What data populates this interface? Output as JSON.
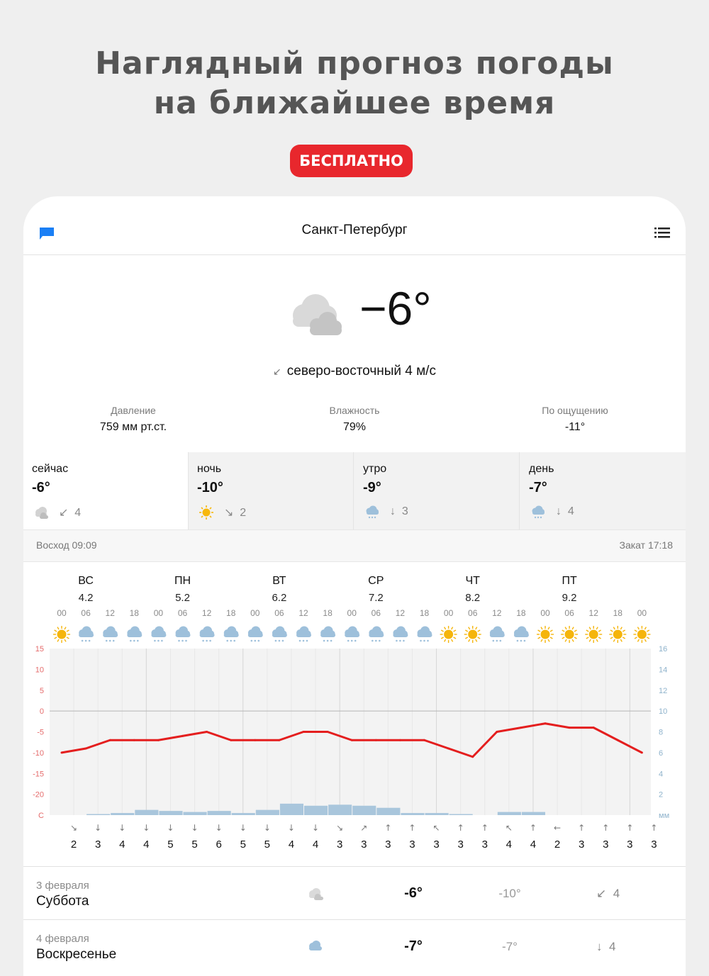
{
  "promo": {
    "headline_line1": "Наглядный прогноз погоды",
    "headline_line2": "на ближайшее время",
    "badge": "БЕСПЛАТНО",
    "badge_color": "#e8272d"
  },
  "nav": {
    "title": "Санкт-Петербург",
    "left_icon": "flag-icon",
    "right_icon": "menu-list-icon"
  },
  "current": {
    "icon": "cloudy-icon",
    "temp": "−6°",
    "wind_arrow": "↙",
    "wind": "северо-восточный 4 м/с",
    "stats": [
      {
        "label": "Давление",
        "value": "759 мм рт.ст."
      },
      {
        "label": "Влажность",
        "value": "79%"
      },
      {
        "label": "По ощущению",
        "value": "-11°"
      }
    ]
  },
  "periods": [
    {
      "name": "сейчас",
      "temp": "-6°",
      "icon": "cloudy-icon",
      "wind_arrow": "↙",
      "wind": "4"
    },
    {
      "name": "ночь",
      "temp": "-10°",
      "icon": "sun-icon",
      "wind_arrow": "↘",
      "wind": "2"
    },
    {
      "name": "утро",
      "temp": "-9°",
      "icon": "snow-icon",
      "wind_arrow": "↓",
      "wind": "3"
    },
    {
      "name": "день",
      "temp": "-7°",
      "icon": "snow-icon",
      "wind_arrow": "↓",
      "wind": "4"
    }
  ],
  "sun": {
    "sunrise": "Восход 09:09",
    "sunset": "Закат 17:18"
  },
  "chart_data": {
    "type": "line",
    "days": [
      {
        "name": "ВС",
        "date": "4.2"
      },
      {
        "name": "ПН",
        "date": "5.2"
      },
      {
        "name": "ВТ",
        "date": "6.2"
      },
      {
        "name": "СР",
        "date": "7.2"
      },
      {
        "name": "ЧТ",
        "date": "8.2"
      },
      {
        "name": "ПТ",
        "date": "9.2"
      }
    ],
    "hours": [
      "00",
      "06",
      "12",
      "18",
      "00",
      "06",
      "12",
      "18",
      "00",
      "06",
      "12",
      "18",
      "00",
      "06",
      "12",
      "18",
      "00",
      "06",
      "12",
      "18",
      "00",
      "06",
      "12",
      "18",
      "00"
    ],
    "icons": [
      "sun",
      "snow",
      "snow",
      "snow",
      "snow",
      "snow",
      "snow",
      "snow",
      "snow",
      "snow",
      "snow",
      "snow",
      "snow",
      "snow",
      "snow",
      "snow",
      "sun",
      "sun",
      "snow",
      "snow",
      "sun",
      "sun",
      "sun",
      "sun",
      "sun"
    ],
    "temp_axis": {
      "ticks": [
        "15",
        "10",
        "5",
        "0",
        "-5",
        "-10",
        "-15",
        "-20",
        "C"
      ],
      "ylim": [
        -25,
        15
      ],
      "color": "#e56b6b"
    },
    "precip_axis": {
      "ticks": [
        "16",
        "14",
        "12",
        "10",
        "8",
        "6",
        "4",
        "2",
        "мм"
      ],
      "ylim": [
        0,
        16
      ],
      "color": "#8fb3cc"
    },
    "temperature": {
      "color": "#e41e1e",
      "points": [
        [
          0,
          -10
        ],
        [
          1,
          -9
        ],
        [
          2,
          -7
        ],
        [
          3,
          -7
        ],
        [
          4,
          -7
        ],
        [
          5,
          -6
        ],
        [
          6,
          -5
        ],
        [
          7,
          -7
        ],
        [
          8,
          -7
        ],
        [
          9,
          -7
        ],
        [
          10,
          -5
        ],
        [
          11,
          -5
        ],
        [
          12,
          -7
        ],
        [
          13,
          -7
        ],
        [
          14,
          -7
        ],
        [
          15,
          -7
        ],
        [
          16,
          -9
        ],
        [
          17,
          -11
        ],
        [
          18,
          -5
        ],
        [
          19,
          -4
        ],
        [
          20,
          -3
        ],
        [
          21,
          -4
        ],
        [
          22,
          -4
        ],
        [
          23,
          -7
        ],
        [
          24,
          -10
        ]
      ]
    },
    "precipitation": {
      "color": "#a9c6dc",
      "values": [
        0,
        0.1,
        0.2,
        0.5,
        0.4,
        0.3,
        0.4,
        0.2,
        0.5,
        1.1,
        0.9,
        1.0,
        0.9,
        0.7,
        0.2,
        0.2,
        0.1,
        0,
        0.3,
        0.3,
        0,
        0,
        0,
        0,
        0
      ]
    },
    "wind_arrows": [
      "↘",
      "↓",
      "↓",
      "↓",
      "↓",
      "↓",
      "↓",
      "↓",
      "↓",
      "↓",
      "↓",
      "↘",
      "↗",
      "↑",
      "↑",
      "↖",
      "↑",
      "↑",
      "↖",
      "↑",
      "←",
      "↑",
      "↑",
      "↑",
      "↑"
    ],
    "wind_speeds": [
      "2",
      "3",
      "4",
      "4",
      "5",
      "5",
      "6",
      "5",
      "5",
      "4",
      "4",
      "3",
      "3",
      "3",
      "3",
      "3",
      "3",
      "3",
      "4",
      "4",
      "2",
      "3",
      "3",
      "3",
      "3"
    ]
  },
  "daily": [
    {
      "date": "3 февраля",
      "weekday": "Суббота",
      "icon": "cloudy-icon",
      "day_temp": "-6°",
      "night_temp": "-10°",
      "wind_arrow": "↙",
      "wind": "4"
    },
    {
      "date": "4 февраля",
      "weekday": "Воскресенье",
      "icon": "snow-icon",
      "day_temp": "-7°",
      "night_temp": "-7°",
      "wind_arrow": "↓",
      "wind": "4"
    }
  ]
}
